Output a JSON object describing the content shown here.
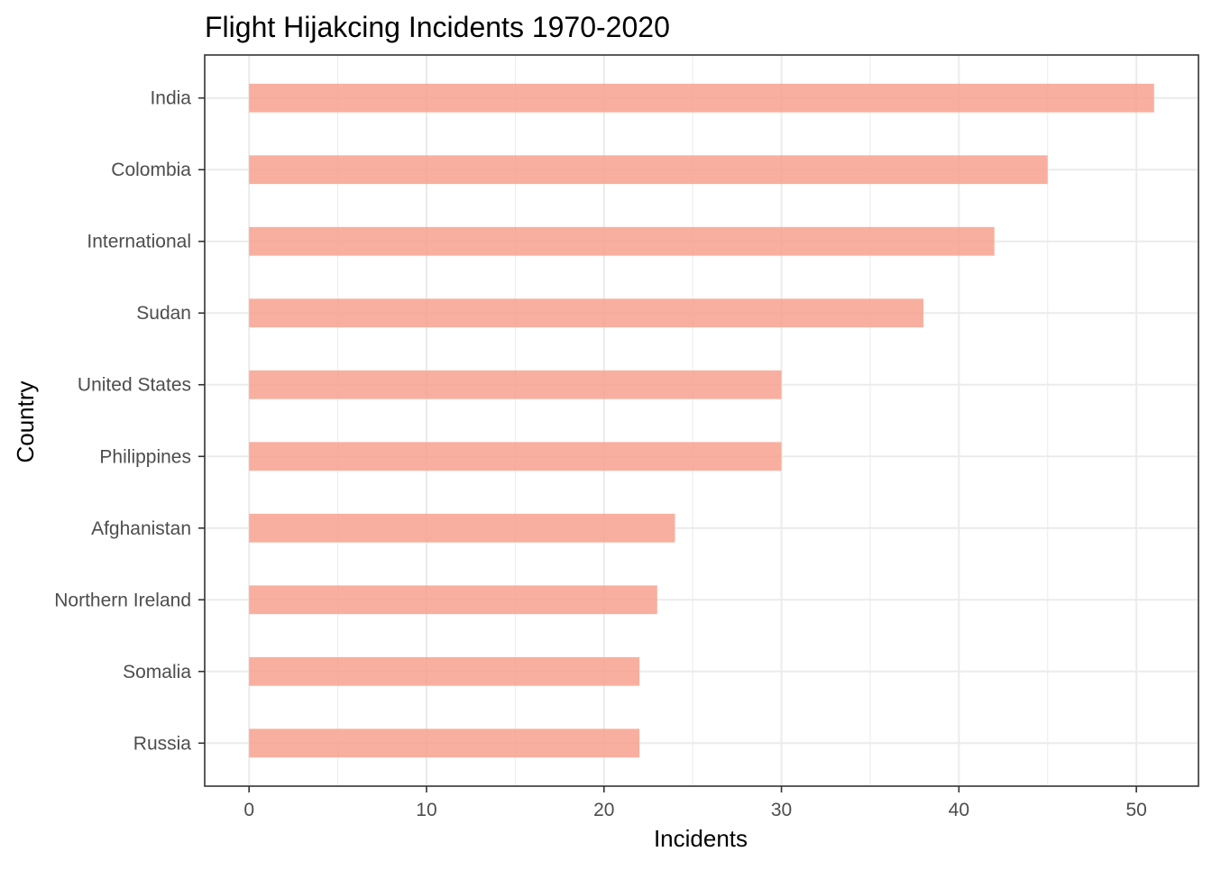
{
  "chart_data": {
    "type": "bar",
    "orientation": "horizontal",
    "title": "Flight Hijakcing Incidents 1970-2020",
    "xlabel": "Incidents",
    "ylabel": "Country",
    "categories": [
      "India",
      "Colombia",
      "International",
      "Sudan",
      "United States",
      "Philippines",
      "Afghanistan",
      "Northern Ireland",
      "Somalia",
      "Russia"
    ],
    "values": [
      51,
      45,
      42,
      38,
      30,
      30,
      24,
      23,
      22,
      22
    ],
    "xlim": [
      -2.5,
      53.5
    ],
    "xticks": [
      0,
      10,
      20,
      30,
      40,
      50
    ],
    "grid": true,
    "bar_color": "#F8A18E",
    "legend": "none"
  }
}
